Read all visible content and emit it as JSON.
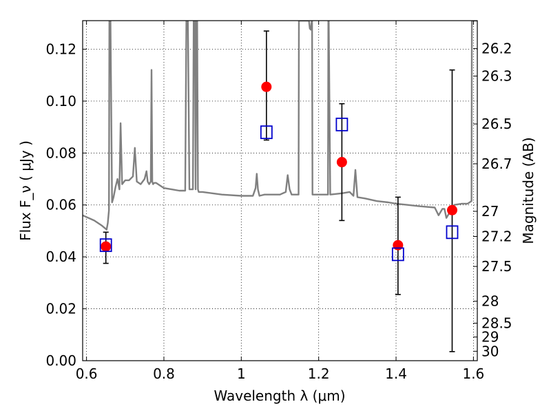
{
  "chart_data": {
    "type": "scatter",
    "title": "",
    "xlabel": "Wavelength  λ (μm)",
    "ylabel": "Flux  F_ν  ( μJy )",
    "ylabel_right": "Magnitude (AB)",
    "xlim": [
      0.59,
      1.61
    ],
    "ylim": [
      0.0,
      0.131
    ],
    "grid": true,
    "legend": "none",
    "x_ticks": [
      "0.6",
      "0.8",
      "1",
      "1.2",
      "1.4",
      "1.6"
    ],
    "y_ticks": [
      "0.00",
      "0.02",
      "0.04",
      "0.06",
      "0.08",
      "0.10",
      "0.12"
    ],
    "right_ticks": [
      "26.2",
      "26.3",
      "26.5",
      "26.7",
      "27",
      "27.2",
      "27.5",
      "28",
      "28.5",
      "29",
      "30"
    ],
    "series": [
      {
        "marker": "circle",
        "color": "#ff0000",
        "x": [
          0.65,
          1.065,
          1.26,
          1.405,
          1.545
        ],
        "y": [
          0.044,
          0.1055,
          0.0765,
          0.0445,
          0.058
        ],
        "yerr_low": [
          0.0375,
          0.085,
          0.054,
          0.0255,
          0.0035
        ],
        "yerr_high": [
          0.0495,
          0.127,
          0.099,
          0.063,
          0.112
        ]
      },
      {
        "marker": "open-square",
        "color": "#0000cc",
        "x": [
          0.65,
          1.065,
          1.26,
          1.405,
          1.545
        ],
        "y": [
          0.0445,
          0.088,
          0.091,
          0.041,
          0.0495
        ]
      },
      {
        "marker": "line",
        "color": "#808080",
        "x": [
          0.59,
          0.62,
          0.64,
          0.652,
          0.655,
          0.658,
          0.659,
          0.66,
          0.662,
          0.666,
          0.67,
          0.675,
          0.68,
          0.685,
          0.688,
          0.692,
          0.7,
          0.71,
          0.72,
          0.725,
          0.73,
          0.74,
          0.75,
          0.755,
          0.758,
          0.762,
          0.766,
          0.768,
          0.77,
          0.772,
          0.775,
          0.78,
          0.8,
          0.82,
          0.84,
          0.855,
          0.858,
          0.862,
          0.866,
          0.875,
          0.877,
          0.88,
          0.882,
          0.884,
          0.886,
          0.888,
          0.89,
          0.894,
          0.9,
          0.95,
          1.0,
          1.03,
          1.037,
          1.04,
          1.043,
          1.047,
          1.06,
          1.1,
          1.115,
          1.12,
          1.125,
          1.13,
          1.148,
          1.149,
          1.15,
          1.17,
          1.175,
          1.177,
          1.18,
          1.182,
          1.183,
          1.184,
          1.21,
          1.224,
          1.225,
          1.226,
          1.23,
          1.26,
          1.28,
          1.29,
          1.295,
          1.3,
          1.32,
          1.35,
          1.38,
          1.4,
          1.43,
          1.46,
          1.5,
          1.51,
          1.52,
          1.525,
          1.53,
          1.55,
          1.57,
          1.585,
          1.595,
          1.596,
          1.61
        ],
        "y": [
          0.056,
          0.054,
          0.052,
          0.0505,
          0.053,
          0.058,
          0.131,
          0.131,
          0.131,
          0.061,
          0.063,
          0.067,
          0.07,
          0.066,
          0.0915,
          0.068,
          0.0695,
          0.0695,
          0.071,
          0.082,
          0.069,
          0.068,
          0.07,
          0.073,
          0.069,
          0.068,
          0.069,
          0.112,
          0.069,
          0.068,
          0.0685,
          0.0685,
          0.0665,
          0.066,
          0.0655,
          0.0655,
          0.131,
          0.131,
          0.066,
          0.066,
          0.131,
          0.131,
          0.066,
          0.131,
          0.131,
          0.066,
          0.065,
          0.065,
          0.065,
          0.064,
          0.0635,
          0.0635,
          0.0665,
          0.072,
          0.066,
          0.0635,
          0.064,
          0.064,
          0.065,
          0.0715,
          0.066,
          0.064,
          0.064,
          0.131,
          0.131,
          0.131,
          0.131,
          0.128,
          0.1275,
          0.131,
          0.131,
          0.064,
          0.064,
          0.064,
          0.131,
          0.131,
          0.064,
          0.0645,
          0.065,
          0.0635,
          0.0735,
          0.063,
          0.0625,
          0.0615,
          0.061,
          0.0605,
          0.06,
          0.0595,
          0.059,
          0.056,
          0.0585,
          0.0585,
          0.055,
          0.06,
          0.0605,
          0.0605,
          0.0615,
          0.131,
          0.131
        ]
      }
    ]
  }
}
